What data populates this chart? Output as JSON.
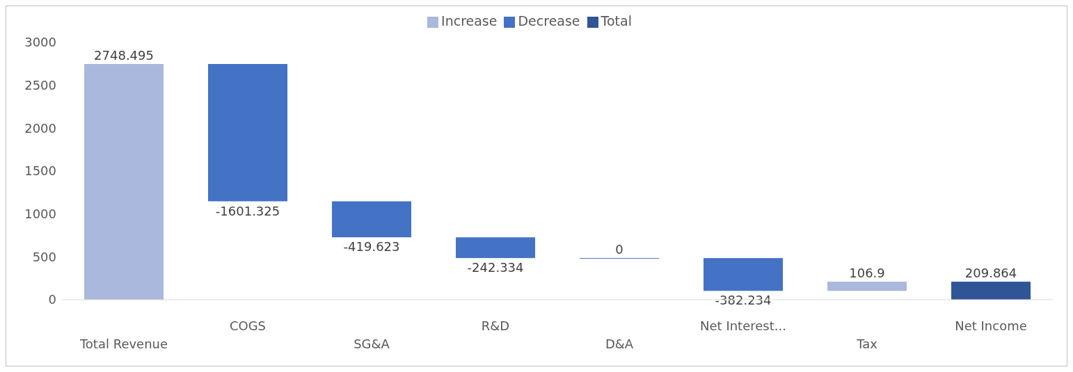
{
  "chart_data": {
    "type": "bar",
    "categories": [
      "Total Revenue",
      "COGS",
      "SG&A",
      "R&D",
      "D&A",
      "Net Interest...",
      "Tax",
      "Net Income"
    ],
    "series": [
      {
        "name": "Increase",
        "color": "#a9b8dc",
        "values": [
          2748.495,
          null,
          null,
          null,
          null,
          null,
          106.9,
          null
        ],
        "base": [
          0,
          null,
          null,
          null,
          null,
          null,
          102.979,
          null
        ]
      },
      {
        "name": "Decrease",
        "color": "#4472c4",
        "values": [
          null,
          -1601.325,
          -419.623,
          -242.334,
          0,
          -382.234,
          null,
          null
        ],
        "base": [
          null,
          2748.495,
          1147.17,
          727.547,
          485.213,
          485.213,
          null,
          null
        ]
      },
      {
        "name": "Total",
        "color": "#2f5597",
        "values": [
          null,
          null,
          null,
          null,
          null,
          null,
          null,
          209.864
        ],
        "base": [
          null,
          null,
          null,
          null,
          null,
          null,
          null,
          0
        ]
      }
    ],
    "ylim": [
      0,
      3000
    ],
    "yticks": [
      0,
      500,
      1000,
      1500,
      2000,
      2500,
      3000
    ],
    "data_labels": true,
    "legend": "top",
    "grid": false
  }
}
